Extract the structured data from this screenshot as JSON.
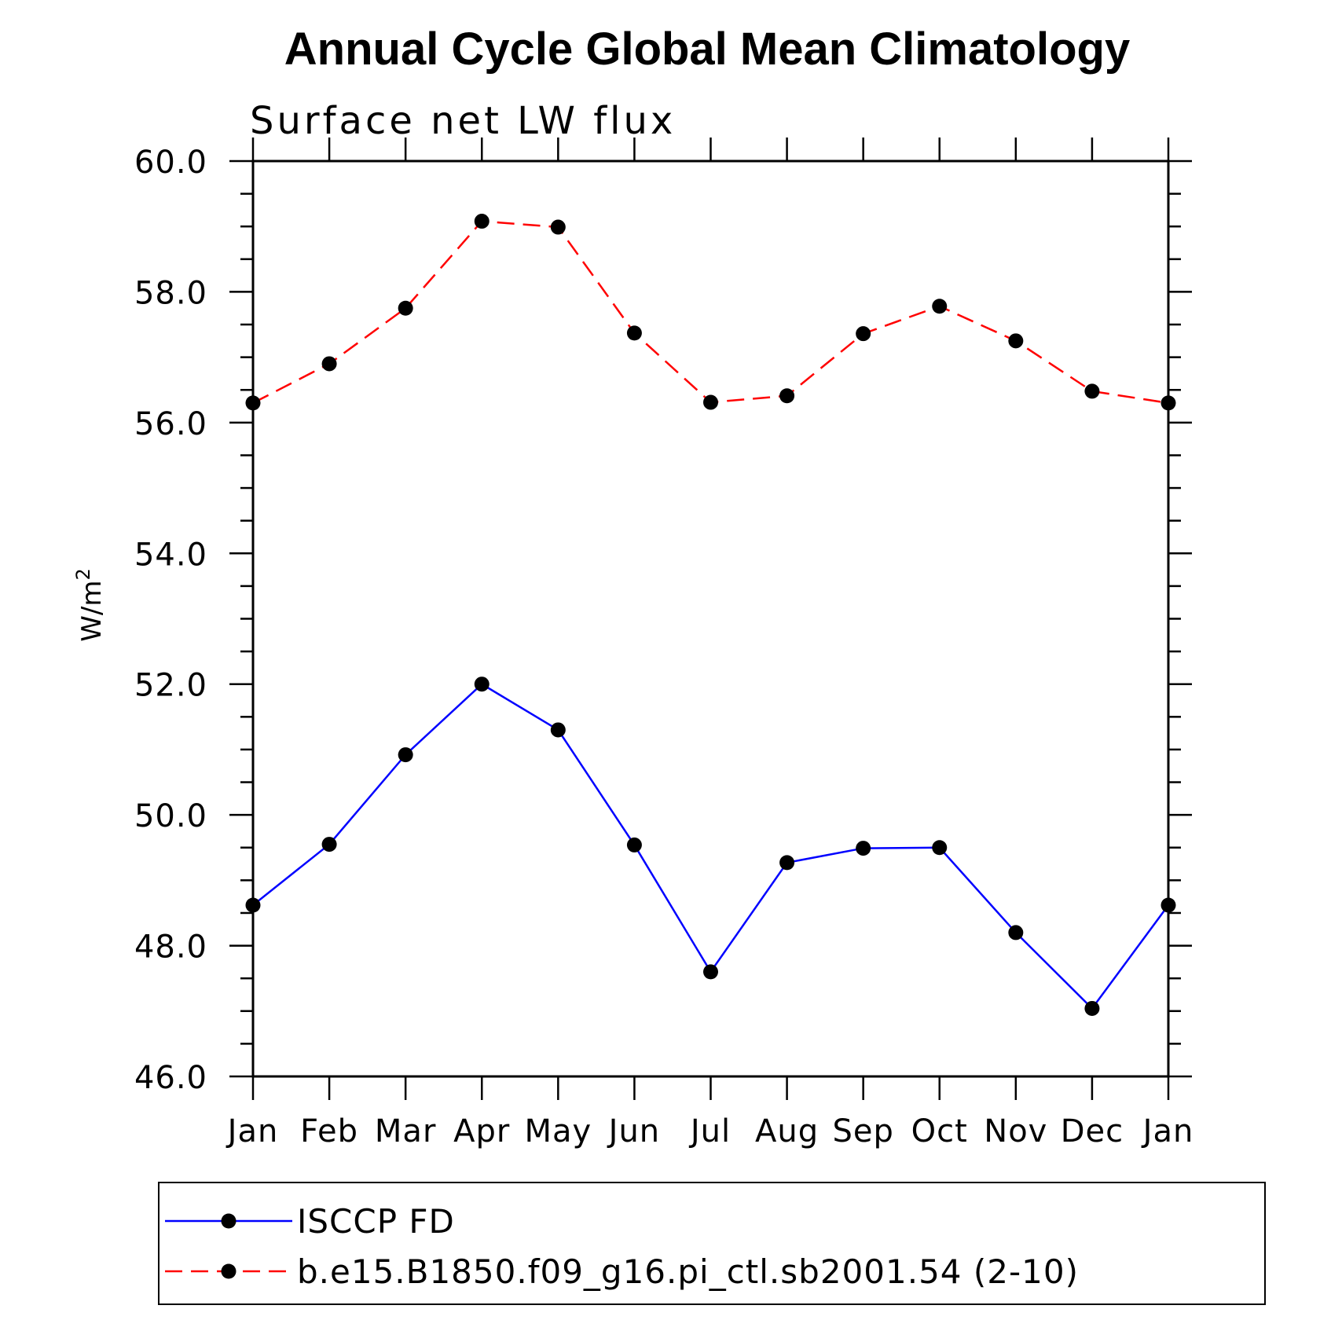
{
  "chart_data": {
    "type": "line",
    "title": "Annual Cycle Global Mean Climatology",
    "subtitle": "Surface net LW flux",
    "ylabel": "W/m",
    "ylabel_superscript": "2",
    "xlabel": "",
    "categories": [
      "Jan",
      "Feb",
      "Mar",
      "Apr",
      "May",
      "Jun",
      "Jul",
      "Aug",
      "Sep",
      "Oct",
      "Nov",
      "Dec",
      "Jan"
    ],
    "ylim": [
      46,
      60
    ],
    "yticks": [
      "46.0",
      "48.0",
      "50.0",
      "52.0",
      "54.0",
      "56.0",
      "58.0",
      "60.0"
    ],
    "grid": false,
    "legend_position": "bottom",
    "series": [
      {
        "name": "ISCCP FD",
        "color": "#0000ff",
        "line_style": "solid",
        "marker": "filled-circle",
        "values": [
          48.62,
          49.55,
          50.92,
          52.0,
          51.3,
          49.54,
          47.6,
          49.27,
          49.49,
          49.5,
          48.2,
          47.04,
          48.62
        ]
      },
      {
        "name": "b.e15.B1850.f09_g16.pi_ctl.sb2001.54 (2-10)",
        "color": "#ff0000",
        "line_style": "dashed",
        "marker": "filled-circle",
        "values": [
          56.3,
          56.9,
          57.75,
          59.08,
          58.99,
          57.37,
          56.31,
          56.41,
          57.36,
          57.78,
          57.25,
          56.48,
          56.3
        ]
      }
    ]
  }
}
